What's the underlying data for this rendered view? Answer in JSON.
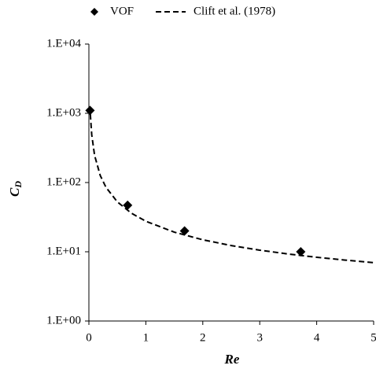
{
  "chart_data": {
    "type": "scatter",
    "xlabel": "Re",
    "ylabel": [
      "C",
      "D"
    ],
    "xlim": [
      0,
      5
    ],
    "xticks": [
      0,
      1,
      2,
      3,
      4,
      5
    ],
    "ylim": [
      1,
      10000
    ],
    "log_y": true,
    "yticks": [
      {
        "value": 1,
        "label": "1.E+00"
      },
      {
        "value": 10,
        "label": "1.E+01"
      },
      {
        "value": 100,
        "label": "1.E+02"
      },
      {
        "value": 1000,
        "label": "1.E+03"
      },
      {
        "value": 10000,
        "label": "1.E+04"
      }
    ],
    "legend": "top",
    "series": [
      {
        "name": "VOF",
        "type": "scatter",
        "color": "#000000",
        "x": [
          0.02,
          0.68,
          1.68,
          3.72
        ],
        "values": [
          1100,
          47,
          20,
          10
        ]
      },
      {
        "name": "Clift et al. (1978)",
        "type": "line",
        "dashed": true,
        "color": "#000000",
        "x": [
          0.025,
          0.05,
          0.1,
          0.2,
          0.3,
          0.5,
          0.75,
          1,
          1.5,
          2,
          2.5,
          3,
          3.5,
          4,
          4.5,
          5
        ],
        "values": [
          971,
          489,
          247,
          126,
          85.2,
          52.5,
          35.9,
          27.6,
          19.2,
          14.9,
          12.3,
          10.55,
          9.29,
          8.33,
          7.58,
          6.97
        ]
      }
    ]
  }
}
